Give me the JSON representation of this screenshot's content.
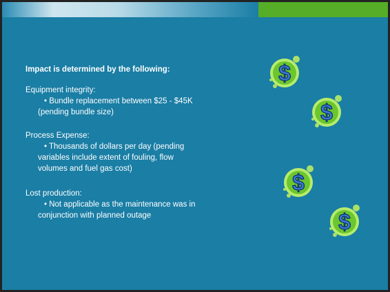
{
  "slide": {
    "heading": "Impact is determined by the following:",
    "sections": [
      {
        "title": "Equipment integrity:",
        "lines": [
          "• Bundle replacement between $25 - $45K",
          "(pending bundle size)"
        ]
      },
      {
        "title": "Process Expense:",
        "lines": [
          "• Thousands of dollars per day (pending",
          "variables include extent of fouling, flow",
          "volumes and fuel gas cost)"
        ]
      },
      {
        "title": "Lost production:",
        "lines": [
          "• Not applicable as the maintenance was in",
          "conjunction with planned outage"
        ]
      }
    ],
    "icons": [
      "$",
      "$",
      "$",
      "$"
    ]
  }
}
